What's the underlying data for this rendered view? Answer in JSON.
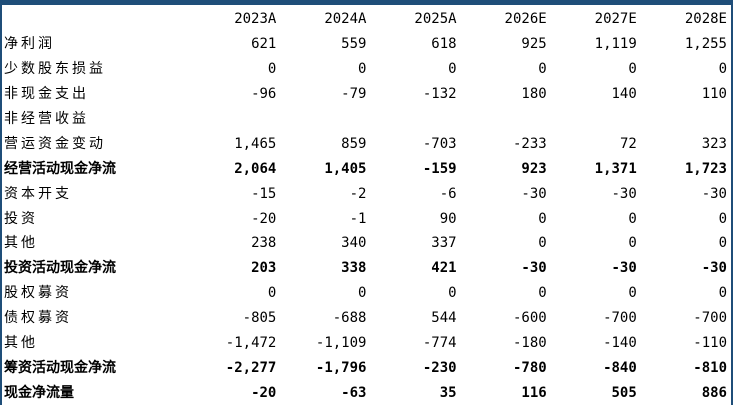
{
  "table": {
    "corner": "",
    "years": [
      "2023A",
      "2024A",
      "2025A",
      "2026E",
      "2027E",
      "2028E"
    ],
    "rows": [
      {
        "label": "净利润",
        "bold": false,
        "values": [
          "621",
          "559",
          "618",
          "925",
          "1,119",
          "1,255"
        ]
      },
      {
        "label": "少数股东损益",
        "bold": false,
        "values": [
          "0",
          "0",
          "0",
          "0",
          "0",
          "0"
        ]
      },
      {
        "label": "非现金支出",
        "bold": false,
        "values": [
          "-96",
          "-79",
          "-132",
          "180",
          "140",
          "110"
        ]
      },
      {
        "label": "非经营收益",
        "bold": false,
        "values": [
          "",
          "",
          "",
          "",
          "",
          ""
        ]
      },
      {
        "label": "营运资金变动",
        "bold": false,
        "values": [
          "1,465",
          "859",
          "-703",
          "-233",
          "72",
          "323"
        ]
      },
      {
        "label": "经营活动现金净流",
        "bold": true,
        "values": [
          "2,064",
          "1,405",
          "-159",
          "923",
          "1,371",
          "1,723"
        ]
      },
      {
        "label": "资本开支",
        "bold": false,
        "values": [
          "-15",
          "-2",
          "-6",
          "-30",
          "-30",
          "-30"
        ]
      },
      {
        "label": "投资",
        "bold": false,
        "values": [
          "-20",
          "-1",
          "90",
          "0",
          "0",
          "0"
        ]
      },
      {
        "label": "其他",
        "bold": false,
        "values": [
          "238",
          "340",
          "337",
          "0",
          "0",
          "0"
        ]
      },
      {
        "label": "投资活动现金净流",
        "bold": true,
        "values": [
          "203",
          "338",
          "421",
          "-30",
          "-30",
          "-30"
        ]
      },
      {
        "label": "股权募资",
        "bold": false,
        "values": [
          "0",
          "0",
          "0",
          "0",
          "0",
          "0"
        ]
      },
      {
        "label": "债权募资",
        "bold": false,
        "values": [
          "-805",
          "-688",
          "544",
          "-600",
          "-700",
          "-700"
        ]
      },
      {
        "label": "其他",
        "bold": false,
        "values": [
          "-1,472",
          "-1,109",
          "-774",
          "-180",
          "-140",
          "-110"
        ]
      },
      {
        "label": "筹资活动现金净流",
        "bold": true,
        "values": [
          "-2,277",
          "-1,796",
          "-230",
          "-780",
          "-840",
          "-810"
        ]
      },
      {
        "label": "现金净流量",
        "bold": true,
        "values": [
          "-20",
          "-63",
          "35",
          "116",
          "505",
          "886"
        ]
      }
    ]
  }
}
